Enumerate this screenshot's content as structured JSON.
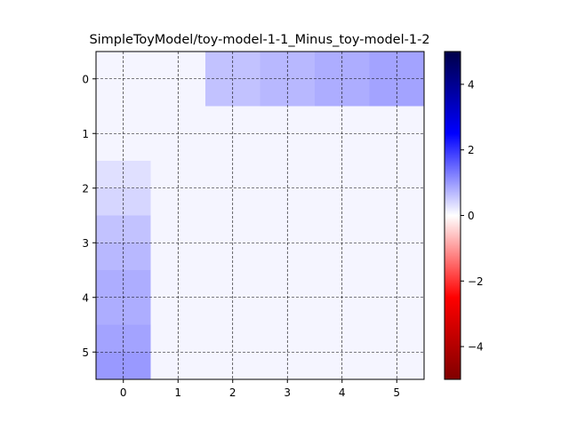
{
  "chart_data": {
    "type": "heatmap",
    "title": "SimpleToyModel/toy-model-1-1_Minus_toy-model-1-2",
    "xlabel": "",
    "ylabel": "",
    "x_ticks": [
      "0",
      "1",
      "2",
      "3",
      "4",
      "5"
    ],
    "y_ticks": [
      "0",
      "1",
      "2",
      "3",
      "4",
      "5"
    ],
    "sub_rows_per_cell": 2,
    "values": [
      [
        0.1,
        0.1,
        0.1,
        0.1,
        0.6,
        0.6,
        0.7,
        0.7,
        0.8,
        0.8,
        0.9,
        0.9
      ],
      [
        0.1,
        0.1,
        0.1,
        0.1,
        0.6,
        0.6,
        0.7,
        0.7,
        0.8,
        0.8,
        0.9,
        0.9
      ],
      [
        0.1,
        0.1,
        0.1,
        0.1,
        0.1,
        0.1,
        0.1,
        0.1,
        0.1,
        0.1,
        0.1,
        0.1
      ],
      [
        0.1,
        0.1,
        0.1,
        0.1,
        0.1,
        0.1,
        0.1,
        0.1,
        0.1,
        0.1,
        0.1,
        0.1
      ],
      [
        0.3,
        0.3,
        0.1,
        0.1,
        0.1,
        0.1,
        0.1,
        0.1,
        0.1,
        0.1,
        0.1,
        0.1
      ],
      [
        0.4,
        0.4,
        0.1,
        0.1,
        0.1,
        0.1,
        0.1,
        0.1,
        0.1,
        0.1,
        0.1,
        0.1
      ],
      [
        0.6,
        0.6,
        0.1,
        0.1,
        0.1,
        0.1,
        0.1,
        0.1,
        0.1,
        0.1,
        0.1,
        0.1
      ],
      [
        0.7,
        0.7,
        0.1,
        0.1,
        0.1,
        0.1,
        0.1,
        0.1,
        0.1,
        0.1,
        0.1,
        0.1
      ],
      [
        0.8,
        0.8,
        0.1,
        0.1,
        0.1,
        0.1,
        0.1,
        0.1,
        0.1,
        0.1,
        0.1,
        0.1
      ],
      [
        0.8,
        0.8,
        0.1,
        0.1,
        0.1,
        0.1,
        0.1,
        0.1,
        0.1,
        0.1,
        0.1,
        0.1
      ],
      [
        0.9,
        0.9,
        0.1,
        0.1,
        0.1,
        0.1,
        0.1,
        0.1,
        0.1,
        0.1,
        0.1,
        0.1
      ],
      [
        1.0,
        1.0,
        0.1,
        0.1,
        0.1,
        0.1,
        0.1,
        0.1,
        0.1,
        0.1,
        0.1,
        0.1
      ]
    ],
    "colorbar": {
      "colormap": "seismic_r",
      "vmin": -5,
      "vmax": 5,
      "ticks": [
        4,
        2,
        0,
        -2,
        -4
      ],
      "tick_labels": [
        "4",
        "2",
        "0",
        "−2",
        "−4"
      ]
    },
    "grid": true,
    "grid_style": "dashed"
  }
}
